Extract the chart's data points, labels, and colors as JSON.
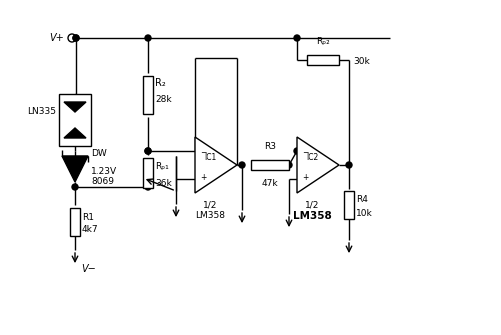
{
  "background_color": "#ffffff",
  "line_color": "#000000",
  "fig_width": 5.01,
  "fig_height": 3.35,
  "dpi": 100,
  "labels": {
    "vplus": "V+",
    "vminus": "V−",
    "ln335": "LN335",
    "dw": "DW",
    "zener_val": "1.23V",
    "ic_num": "8069",
    "r2_label": "R₂",
    "r2_val": "28k",
    "rp1_label": "Rₚ₁",
    "rp1_val": "36k",
    "r1_label": "R1",
    "r1_val": "4k7",
    "ic1_label": "IC1",
    "lm358_1a": "1/2",
    "lm358_1b": "LM358",
    "r3_label": "R3",
    "r3_val": "47k",
    "ic2_label": "IC2",
    "lm358_2a": "1/2",
    "lm358_2b": "LM358",
    "rp2_label": "Rₚ₂",
    "rp2_val": "30k",
    "r4_label": "R4",
    "r4_val": "10k"
  }
}
